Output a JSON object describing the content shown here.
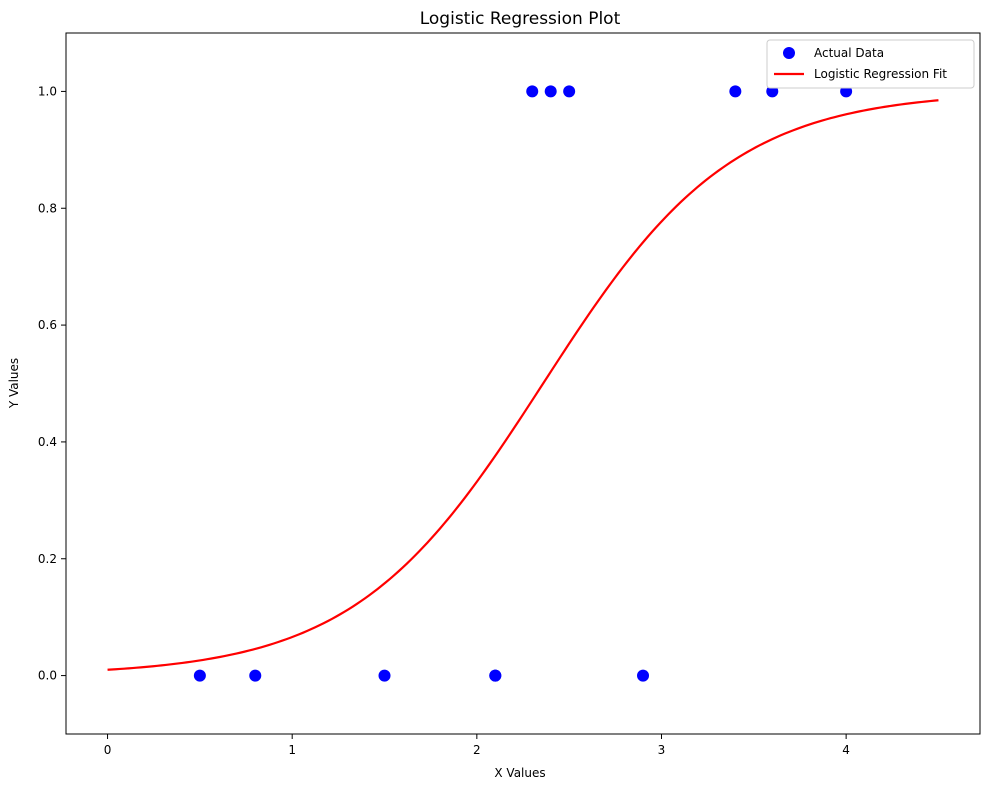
{
  "chart_data": {
    "type": "scatter",
    "title": "Logistic Regression Plot",
    "xlabel": "X Values",
    "ylabel": "Y Values",
    "xlim": [
      -0.225,
      4.725
    ],
    "ylim": [
      -0.1,
      1.1
    ],
    "xticks": [
      0,
      1,
      2,
      3,
      4
    ],
    "yticks": [
      0.0,
      0.2,
      0.4,
      0.6,
      0.8,
      1.0
    ],
    "xtick_labels": [
      "0",
      "1",
      "2",
      "3",
      "4"
    ],
    "ytick_labels": [
      "0.0",
      "0.2",
      "0.4",
      "0.6",
      "0.8",
      "1.0"
    ],
    "grid": false,
    "legend_position": "top-right",
    "series": [
      {
        "name": "Actual Data",
        "kind": "scatter",
        "color": "#0000ff",
        "x": [
          0.5,
          0.8,
          1.5,
          2.1,
          2.1,
          2.3,
          2.4,
          2.5,
          2.9,
          3.4,
          3.6,
          4.0
        ],
        "y": [
          0,
          0,
          0,
          0,
          0,
          1,
          1,
          1,
          0,
          1,
          1,
          1
        ]
      },
      {
        "name": "Logistic Regression Fit",
        "kind": "line",
        "color": "#ff0000",
        "x_range": [
          0,
          4.5
        ],
        "intercept": -4.6,
        "coef": 1.95
      }
    ]
  }
}
